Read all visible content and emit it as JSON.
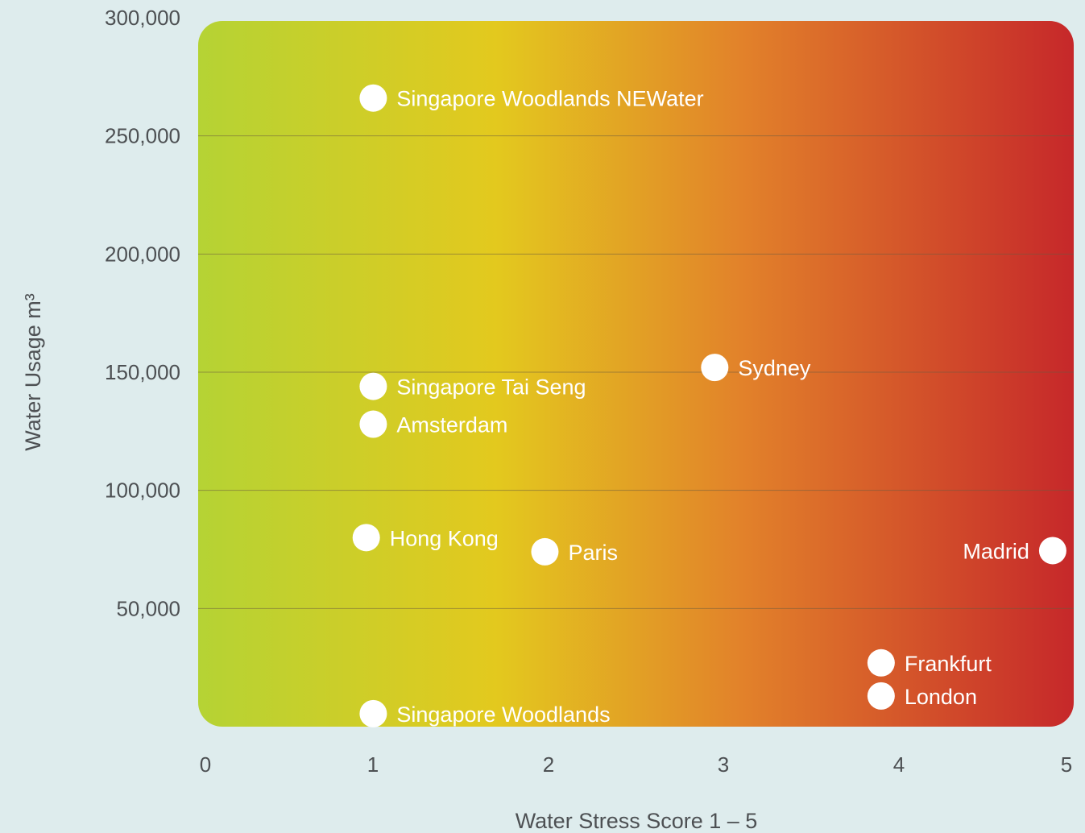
{
  "chart_data": {
    "type": "scatter",
    "title": "",
    "xlabel": "Water Stress Score 1 – 5",
    "ylabel": "Water Usage m³",
    "xlim": [
      0,
      5
    ],
    "ylim": [
      0,
      300000
    ],
    "x_ticks": [
      "0",
      "1",
      "2",
      "3",
      "4",
      "5"
    ],
    "y_ticks": [
      "50,000",
      "100,000",
      "150,000",
      "200,000",
      "250,000",
      "300,000"
    ],
    "grid": true,
    "background_gradient": [
      "#b5d334",
      "#e3c91e",
      "#e2822a",
      "#c6282a"
    ],
    "point_color": "#ffffff",
    "points": [
      {
        "name": "Singapore Woodlands NEWater",
        "x": 1.0,
        "y": 266000,
        "label_side": "right"
      },
      {
        "name": "Sydney",
        "x": 2.95,
        "y": 152000,
        "label_side": "right"
      },
      {
        "name": "Singapore Tai Seng",
        "x": 1.0,
        "y": 144000,
        "label_side": "right"
      },
      {
        "name": "Amsterdam",
        "x": 1.0,
        "y": 128000,
        "label_side": "right"
      },
      {
        "name": "Hong Kong",
        "x": 0.96,
        "y": 80000,
        "label_side": "right"
      },
      {
        "name": "Paris",
        "x": 1.98,
        "y": 74000,
        "label_side": "right"
      },
      {
        "name": "Madrid",
        "x": 4.88,
        "y": 74500,
        "label_side": "left"
      },
      {
        "name": "Frankfurt",
        "x": 3.9,
        "y": 27000,
        "label_side": "right"
      },
      {
        "name": "London",
        "x": 3.9,
        "y": 13000,
        "label_side": "right"
      },
      {
        "name": "Singapore Woodlands",
        "x": 1.0,
        "y": 5500,
        "label_side": "right"
      }
    ]
  }
}
